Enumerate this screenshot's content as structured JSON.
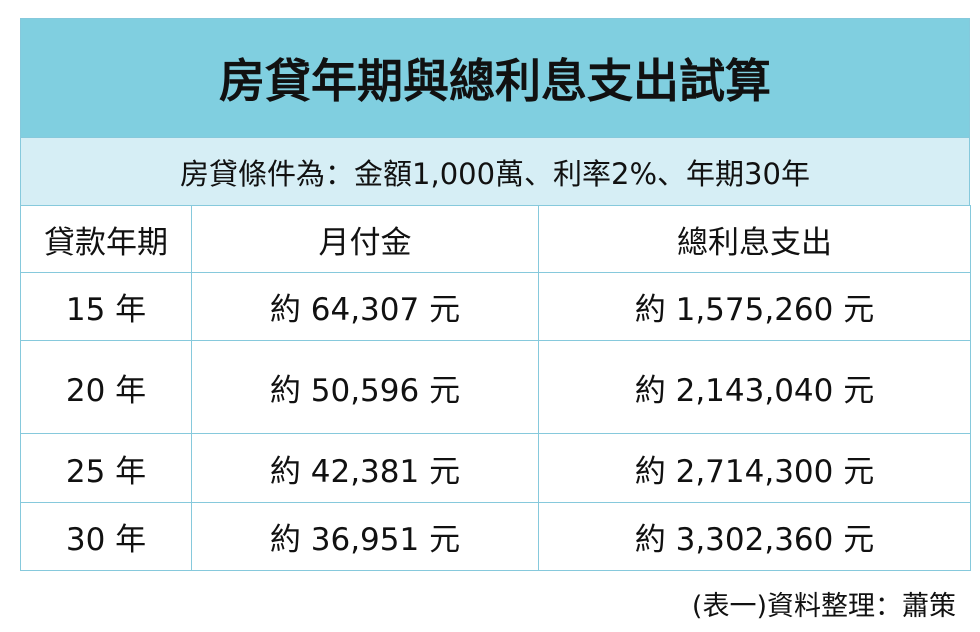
{
  "header": {
    "title": "房貸年期與總利息支出試算",
    "subtitle": "房貸條件為：金額1,000萬、利率2%、年期30年"
  },
  "table": {
    "columns": [
      "貸款年期",
      "月付金",
      "總利息支出"
    ],
    "rows": [
      [
        "15 年",
        "約 64,307 元",
        "約 1,575,260 元"
      ],
      [
        "20 年",
        "約 50,596 元",
        "約 2,143,040 元"
      ],
      [
        "25 年",
        "約 42,381 元",
        "約 2,714,300 元"
      ],
      [
        "30 年",
        "約 36,951 元",
        "約 3,302,360 元"
      ]
    ]
  },
  "footer": {
    "source": "(表一)資料整理：蕭策"
  }
}
